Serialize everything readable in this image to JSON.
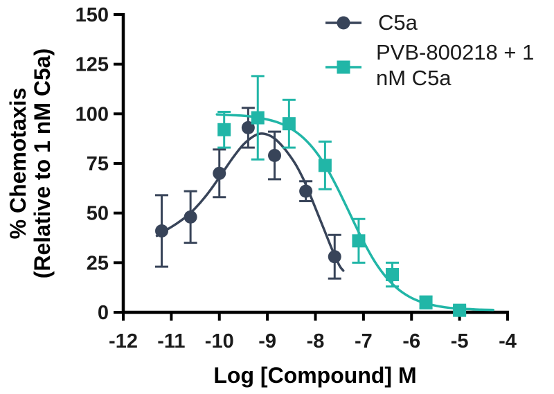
{
  "chart_data": {
    "type": "scatter",
    "title": "",
    "xlabel": "Log [Compound] M",
    "ylabel_line1": "% Chemotaxis",
    "ylabel_line2": "(Relative to 1 nM C5a)",
    "xlim": [
      -12,
      -4
    ],
    "ylim": [
      0,
      150
    ],
    "x_ticks": [
      -12,
      -11,
      -10,
      -9,
      -8,
      -7,
      -6,
      -5,
      -4
    ],
    "y_ticks": [
      0,
      25,
      50,
      75,
      100,
      125,
      150
    ],
    "grid": false,
    "legend_position": "top-right",
    "axis_color": "#000000",
    "tick_label_color": "#1a1a1a",
    "series": [
      {
        "name": "C5a",
        "color": "#384459",
        "marker": "circle",
        "x": [
          -11.2,
          -10.6,
          -10.0,
          -9.4,
          -8.85,
          -8.2,
          -7.6
        ],
        "y": [
          41,
          48,
          70,
          93,
          79,
          61,
          28
        ],
        "err": [
          18,
          13,
          12,
          10,
          12,
          5,
          11
        ],
        "fit": [
          [
            -11.3,
            38.5
          ],
          [
            -11.1,
            41.5
          ],
          [
            -10.9,
            44.5
          ],
          [
            -10.7,
            48
          ],
          [
            -10.5,
            52.5
          ],
          [
            -10.3,
            58
          ],
          [
            -10.1,
            64.5
          ],
          [
            -9.9,
            71.5
          ],
          [
            -9.7,
            78.5
          ],
          [
            -9.5,
            84.5
          ],
          [
            -9.3,
            88.5
          ],
          [
            -9.15,
            90
          ],
          [
            -9.0,
            89.5
          ],
          [
            -8.85,
            87.5
          ],
          [
            -8.7,
            84
          ],
          [
            -8.55,
            79.5
          ],
          [
            -8.4,
            74
          ],
          [
            -8.25,
            67
          ],
          [
            -8.1,
            58.5
          ],
          [
            -7.95,
            49.5
          ],
          [
            -7.8,
            40.5
          ],
          [
            -7.65,
            31.5
          ],
          [
            -7.5,
            23.5
          ],
          [
            -7.42,
            21
          ]
        ]
      },
      {
        "name": "PVB-800218 + 1 nM C5a",
        "color": "#21B6A7",
        "marker": "square",
        "x": [
          -9.9,
          -9.2,
          -8.55,
          -7.8,
          -7.1,
          -6.4,
          -5.7,
          -5.0
        ],
        "y": [
          92,
          98,
          95,
          74,
          36,
          19,
          5,
          1
        ],
        "err": [
          9,
          21,
          12,
          12,
          11,
          6,
          3,
          2
        ],
        "fit": [
          [
            -10.05,
            99.7
          ],
          [
            -9.8,
            99.4
          ],
          [
            -9.55,
            99.1
          ],
          [
            -9.3,
            98.5
          ],
          [
            -9.05,
            97.4
          ],
          [
            -8.8,
            95.8
          ],
          [
            -8.55,
            93.1
          ],
          [
            -8.3,
            88.9
          ],
          [
            -8.05,
            82.7
          ],
          [
            -7.8,
            74.1
          ],
          [
            -7.55,
            63.0
          ],
          [
            -7.3,
            50.5
          ],
          [
            -7.05,
            38.0
          ],
          [
            -6.8,
            26.9
          ],
          [
            -6.55,
            18.3
          ],
          [
            -6.3,
            12.1
          ],
          [
            -6.05,
            7.9
          ],
          [
            -5.8,
            5.2
          ],
          [
            -5.55,
            3.6
          ],
          [
            -5.3,
            2.5
          ],
          [
            -5.05,
            1.9
          ],
          [
            -4.8,
            1.6
          ],
          [
            -4.55,
            1.3
          ],
          [
            -4.3,
            1.2
          ]
        ]
      }
    ]
  },
  "legend": {
    "item1": "C5a",
    "item2_line1": "PVB-800218 + 1",
    "item2_line2": "nM C5a"
  }
}
